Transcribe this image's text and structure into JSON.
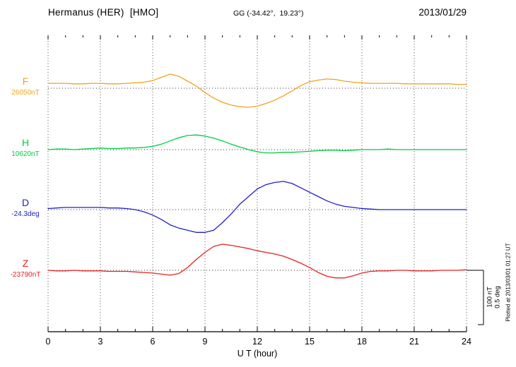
{
  "header": {
    "station": "Hermanus (HER)  [HMO]",
    "coords": "GG (-34.42°,  19.23°)",
    "date": "2013/01/29"
  },
  "axis": {
    "xlabel": "U T (hour)"
  },
  "scale_bar": {
    "nt_label": "100 nT",
    "deg_label": "0.5 deg"
  },
  "footer_note": "Plotted at 2013/03/01 01:27 UT",
  "chart_data": {
    "type": "line",
    "title": "Hermanus (HER) [HMO] magnetogram",
    "date": "2013/01/29",
    "xlabel": "U T (hour)",
    "x_range_hours": [
      0,
      24
    ],
    "x_step_hours": 0.5,
    "x_ticks": [
      0,
      3,
      6,
      9,
      12,
      15,
      18,
      21,
      24
    ],
    "grid": "dotted vertical at 3-hour intervals, dotted horizontal baselines",
    "scale": {
      "nT_per_division": 100,
      "deg_per_division": 0.5
    },
    "series": [
      {
        "name": "F",
        "baseline_label": "26050nT",
        "baseline_value": 26050,
        "unit": "nT",
        "color": "#eda520",
        "offsets": [
          9,
          9,
          9,
          8,
          8,
          9,
          9,
          8,
          8,
          9,
          10,
          11,
          14,
          20,
          26,
          22,
          13,
          4,
          -8,
          -18,
          -26,
          -31,
          -34,
          -35,
          -33,
          -28,
          -22,
          -14,
          -5,
          5,
          12,
          15,
          17,
          16,
          13,
          11,
          10,
          9,
          9,
          9,
          9,
          8,
          8,
          8,
          8,
          8,
          8,
          7,
          7
        ]
      },
      {
        "name": "H",
        "baseline_label": "10620nT",
        "baseline_value": 10620,
        "unit": "nT",
        "color": "#00cc44",
        "offsets": [
          0,
          1,
          1,
          0,
          1,
          2,
          3,
          2,
          2,
          3,
          3,
          4,
          6,
          10,
          16,
          22,
          26,
          27,
          25,
          21,
          16,
          10,
          5,
          0,
          -4,
          -6,
          -6,
          -5,
          -5,
          -4,
          -3,
          -2,
          -1,
          -1,
          -2,
          -1,
          0,
          0,
          0,
          1,
          0,
          0,
          0,
          0,
          0,
          0,
          0,
          0,
          0
        ]
      },
      {
        "name": "D",
        "baseline_label": "-24.3deg",
        "baseline_value": -24.3,
        "unit": "deg",
        "color": "#2020c8",
        "offsets": [
          0.01,
          0.015,
          0.02,
          0.02,
          0.02,
          0.02,
          0.02,
          0.015,
          0.015,
          0.01,
          0,
          -0.02,
          -0.05,
          -0.09,
          -0.14,
          -0.17,
          -0.19,
          -0.21,
          -0.21,
          -0.19,
          -0.12,
          -0.04,
          0.05,
          0.12,
          0.19,
          0.23,
          0.25,
          0.26,
          0.24,
          0.2,
          0.16,
          0.12,
          0.08,
          0.05,
          0.03,
          0.02,
          0.01,
          0.005,
          0,
          0,
          0,
          0,
          0,
          0,
          0,
          0,
          0,
          0,
          0
        ]
      },
      {
        "name": "Z",
        "baseline_label": "-23790nT",
        "baseline_value": -23790,
        "unit": "nT",
        "color": "#e62222",
        "offsets": [
          0,
          -1,
          -1,
          0,
          -1,
          -1,
          -1,
          -2,
          -2,
          -2,
          -3,
          -4,
          -5,
          -7,
          -9,
          -6,
          5,
          20,
          33,
          44,
          48,
          46,
          43,
          40,
          36,
          33,
          30,
          26,
          20,
          13,
          5,
          -4,
          -11,
          -14,
          -14,
          -10,
          -5,
          -2,
          -1,
          -1,
          0,
          0,
          -1,
          -1,
          -1,
          0,
          0,
          0,
          1
        ]
      }
    ]
  }
}
